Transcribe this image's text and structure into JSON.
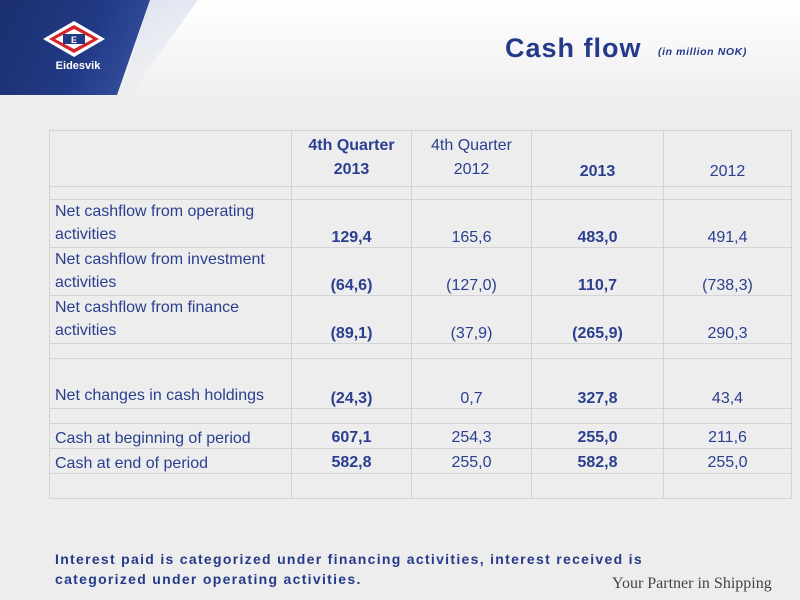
{
  "brand": {
    "name": "Eidesvik",
    "mark_letter": "E",
    "colors": {
      "primary": "#253a8a",
      "logo_red": "#d6252a"
    }
  },
  "header": {
    "title": "Cash flow",
    "subtitle": "(in million NOK)"
  },
  "table": {
    "columns": [
      {
        "line1": "4th Quarter",
        "line2": "2013",
        "bold": true
      },
      {
        "line1": "4th Quarter",
        "line2": "2012",
        "bold": false
      },
      {
        "line1": "",
        "line2": "2013",
        "bold": true
      },
      {
        "line1": "",
        "line2": "2012",
        "bold": false
      }
    ],
    "rows": [
      {
        "label": "Net cashflow from operating activities",
        "values": [
          "129,4",
          "165,6",
          "483,0",
          "491,4"
        ]
      },
      {
        "label": "Net cashflow from investment activities",
        "values": [
          "(64,6)",
          "(127,0)",
          "110,7",
          "(738,3)"
        ]
      },
      {
        "label": "Net cashflow from finance activities",
        "values": [
          "(89,1)",
          "(37,9)",
          "(265,9)",
          "290,3"
        ]
      },
      {
        "label": "Net changes in cash holdings",
        "values": [
          "(24,3)",
          "0,7",
          "327,8",
          "43,4"
        ]
      },
      {
        "label": "Cash at beginning of period",
        "values": [
          "607,1",
          "254,3",
          "255,0",
          "211,6"
        ]
      },
      {
        "label": "Cash at end of period",
        "values": [
          "582,8",
          "255,0",
          "582,8",
          "255,0"
        ]
      }
    ]
  },
  "footer": {
    "note": "Interest paid is categorized under financing activities, interest received is categorized under operating activities.",
    "tagline": "Your Partner in Shipping"
  }
}
